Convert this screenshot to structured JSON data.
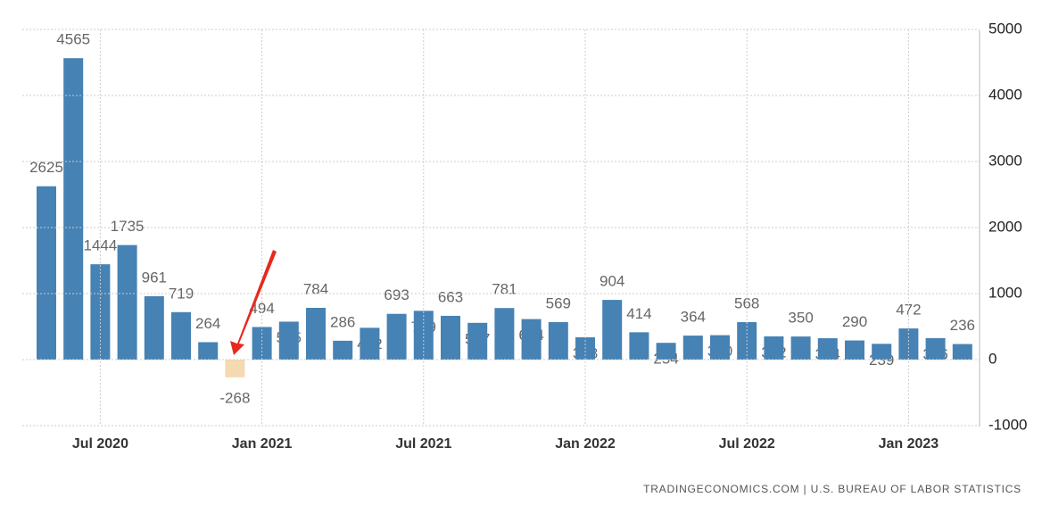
{
  "chart_data": {
    "type": "bar",
    "categories": [
      null,
      null,
      "Jul 2020",
      null,
      null,
      null,
      null,
      null,
      "Jan 2021",
      null,
      null,
      null,
      null,
      null,
      "Jul 2021",
      null,
      null,
      null,
      null,
      null,
      "Jan 2022",
      null,
      null,
      null,
      null,
      null,
      "Jul 2022",
      null,
      null,
      null,
      null,
      null,
      "Jan 2023",
      null,
      null
    ],
    "values": [
      2625,
      4565,
      1444,
      1735,
      961,
      719,
      264,
      -268,
      494,
      575,
      784,
      286,
      482,
      693,
      739,
      663,
      557,
      781,
      614,
      569,
      338,
      904,
      414,
      254,
      364,
      370,
      568,
      352,
      350,
      324,
      290,
      239,
      472,
      326,
      236
    ],
    "color": "#4682b4",
    "negative_color": "#f5d9b0",
    "ylim": [
      -1000,
      5000
    ],
    "yticks": [
      -1000,
      0,
      1000,
      2000,
      3000,
      4000,
      5000
    ],
    "grid": true,
    "source": "TRADINGECONOMICS.COM | U.S. BUREAU OF LABOR STATISTICS"
  }
}
